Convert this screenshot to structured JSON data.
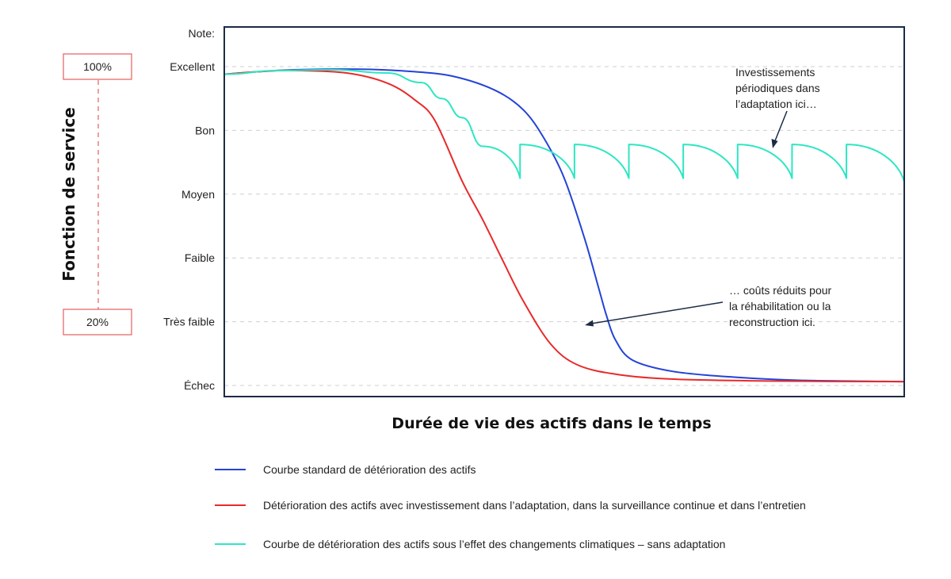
{
  "chart_data": {
    "type": "line",
    "title": "",
    "xlabel": "Durée de vie des actifs dans le temps",
    "ylabel": "Fonction de service",
    "yaxis_title": "Note:",
    "yticks": [
      "Échec",
      "Très faible",
      "Faible",
      "Moyen",
      "Bon",
      "Excellent"
    ],
    "ylim": [
      0,
      5
    ],
    "xlim": [
      0,
      100
    ],
    "grid": "horizontal-dashed",
    "scale_markers": {
      "top": "100%",
      "bottom": "20%"
    },
    "annotations": [
      {
        "lines": [
          "Investissements",
          "périodiques dans",
          "l’adaptation ici…"
        ]
      },
      {
        "lines": [
          "… coûts réduits pour",
          "la réhabilitation ou la",
          "reconstruction ici."
        ]
      }
    ],
    "series": [
      {
        "name": "Courbe standard de détérioration des actifs",
        "color": "#2443d6",
        "points": [
          [
            0,
            4.88
          ],
          [
            5,
            4.92
          ],
          [
            10,
            4.95
          ],
          [
            20,
            4.96
          ],
          [
            28,
            4.92
          ],
          [
            34,
            4.84
          ],
          [
            40,
            4.62
          ],
          [
            44,
            4.32
          ],
          [
            47,
            3.88
          ],
          [
            50,
            3.25
          ],
          [
            53,
            2.3
          ],
          [
            55,
            1.55
          ],
          [
            56.2,
            1.1
          ],
          [
            57.5,
            0.72
          ],
          [
            60,
            0.4
          ],
          [
            66,
            0.22
          ],
          [
            75,
            0.13
          ],
          [
            85,
            0.08
          ],
          [
            100,
            0.06
          ]
        ]
      },
      {
        "name": "Détérioration des actifs avec investissement dans l’adaptation, dans la surveillance continue et dans l’entretien",
        "color": "#e82a2a",
        "points": [
          [
            0,
            4.88
          ],
          [
            5,
            4.92
          ],
          [
            10,
            4.94
          ],
          [
            18,
            4.9
          ],
          [
            24,
            4.74
          ],
          [
            28,
            4.48
          ],
          [
            31,
            4.15
          ],
          [
            35,
            3.2
          ],
          [
            38,
            2.6
          ],
          [
            41,
            1.95
          ],
          [
            44,
            1.32
          ],
          [
            48,
            0.65
          ],
          [
            52,
            0.32
          ],
          [
            58,
            0.17
          ],
          [
            66,
            0.1
          ],
          [
            80,
            0.07
          ],
          [
            100,
            0.06
          ]
        ]
      },
      {
        "name": "Courbe de détérioration des actifs sous l’effet des changements climatiques – sans adaptation",
        "color": "#2ee6c3",
        "points": [
          [
            0,
            4.88
          ],
          [
            8,
            4.94
          ],
          [
            16,
            4.95
          ],
          [
            24,
            4.9
          ],
          [
            29,
            4.75
          ],
          [
            32,
            4.5
          ],
          [
            35,
            4.2
          ],
          [
            38,
            3.75
          ],
          [
            43.5,
            3.25
          ],
          [
            43.5,
            3.78
          ],
          [
            51.5,
            3.25
          ],
          [
            51.5,
            3.78
          ],
          [
            59.5,
            3.25
          ],
          [
            59.5,
            3.78
          ],
          [
            67.5,
            3.25
          ],
          [
            67.5,
            3.78
          ],
          [
            75.5,
            3.25
          ],
          [
            75.5,
            3.78
          ],
          [
            83.5,
            3.25
          ],
          [
            83.5,
            3.78
          ],
          [
            91.5,
            3.25
          ],
          [
            91.5,
            3.78
          ],
          [
            100,
            3.2
          ]
        ],
        "repeated_dips_after": 38
      }
    ]
  }
}
